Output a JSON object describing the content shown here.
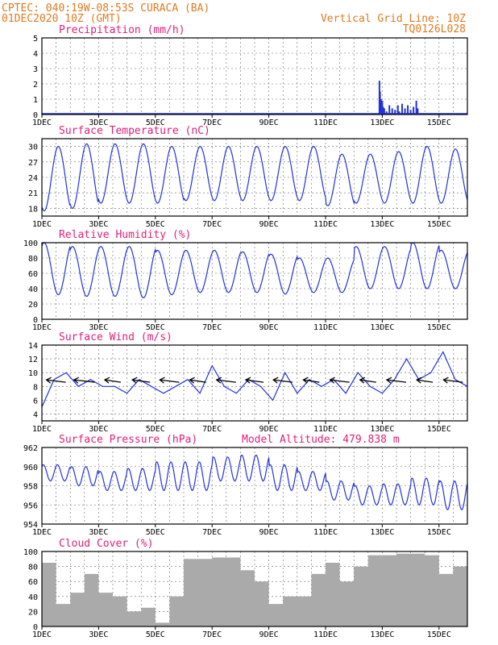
{
  "header": {
    "line1": "CPTEC:  040:19W-08:53S  CURACA (BA)",
    "line2": "01DEC2020 10Z (GMT)",
    "vgrid": "Vertical Grid Line: 10Z",
    "code": "TQ0126L028"
  },
  "colors": {
    "header": "#e07a1f",
    "title": "#e0207a",
    "series": "#2233dd",
    "cloud": "#aaaaaa"
  },
  "xaxis": {
    "ticks": [
      "1DEC",
      "3DEC",
      "5DEC",
      "7DEC",
      "9DEC",
      "11DEC",
      "13DEC",
      "15DEC"
    ],
    "start_day": 1,
    "end_day": 16,
    "grid_step_days": 0.5
  },
  "chart_data": [
    {
      "type": "bar",
      "title": "Precipitation (mm/h)",
      "ylim": [
        0,
        5
      ],
      "yticks": [
        0,
        1,
        2,
        3,
        4,
        5
      ],
      "points": [
        [
          12.9,
          2.2
        ],
        [
          12.92,
          1.5
        ],
        [
          12.95,
          1.0
        ],
        [
          12.97,
          0.7
        ],
        [
          13.0,
          0.9
        ],
        [
          13.03,
          0.5
        ],
        [
          13.07,
          0.4
        ],
        [
          13.15,
          0.2
        ],
        [
          13.25,
          0.6
        ],
        [
          13.35,
          0.4
        ],
        [
          13.45,
          0.3
        ],
        [
          13.55,
          0.6
        ],
        [
          13.6,
          0.2
        ],
        [
          13.7,
          0.7
        ],
        [
          13.8,
          0.4
        ],
        [
          13.9,
          0.6
        ],
        [
          14.0,
          0.3
        ],
        [
          14.1,
          0.5
        ],
        [
          14.2,
          0.9
        ],
        [
          14.25,
          0.4
        ]
      ]
    },
    {
      "type": "line",
      "title": "Surface Temperature (nC)",
      "ylim": [
        16.5,
        31.5
      ],
      "yticks": [
        18,
        21,
        24,
        27,
        30
      ],
      "minima": [
        17.5,
        18,
        19,
        19,
        19,
        19.5,
        19.5,
        19.5,
        19.5,
        19.5,
        18.5,
        19,
        19,
        19,
        19
      ],
      "maxima": [
        30,
        30.5,
        30.5,
        30.5,
        30,
        30,
        30,
        30,
        30,
        30,
        28.5,
        28.5,
        29,
        30,
        29.5
      ]
    },
    {
      "type": "line",
      "title": "Relative Humidity (%)",
      "ylim": [
        0,
        100
      ],
      "yticks": [
        0,
        20,
        40,
        60,
        80,
        100
      ],
      "minima": [
        32,
        30,
        30,
        28,
        32,
        35,
        35,
        35,
        33,
        35,
        35,
        40,
        40,
        40,
        40
      ],
      "maxima": [
        100,
        95,
        95,
        95,
        90,
        90,
        90,
        88,
        85,
        80,
        80,
        95,
        95,
        100,
        90
      ]
    },
    {
      "type": "line",
      "title": "Surface Wind (m/s)",
      "ylim": [
        3,
        14
      ],
      "yticks": [
        4,
        6,
        8,
        10,
        12,
        14
      ],
      "speed": [
        5,
        9,
        10,
        8,
        9,
        8,
        8,
        7,
        9,
        8,
        7,
        8,
        9,
        7,
        11,
        8,
        7,
        9,
        8,
        6,
        10,
        7,
        9,
        8,
        9,
        7,
        10,
        8,
        7,
        9,
        12,
        9,
        10,
        13,
        9,
        8
      ],
      "vectors": [
        {
          "day": 1.5,
          "len": 12
        },
        {
          "day": 2.5,
          "len": 13
        },
        {
          "day": 3.5,
          "len": 10
        },
        {
          "day": 4.5,
          "len": 11
        },
        {
          "day": 5.5,
          "len": 12
        },
        {
          "day": 6.5,
          "len": 10
        },
        {
          "day": 7.5,
          "len": 12
        },
        {
          "day": 8.5,
          "len": 11
        },
        {
          "day": 9.5,
          "len": 12
        },
        {
          "day": 10.5,
          "len": 10
        },
        {
          "day": 11.5,
          "len": 12
        },
        {
          "day": 12.5,
          "len": 10
        },
        {
          "day": 13.5,
          "len": 12
        },
        {
          "day": 14.5,
          "len": 10
        },
        {
          "day": 15.5,
          "len": 12
        }
      ]
    },
    {
      "type": "line",
      "title": "Surface Pressure (hPa)",
      "subtitle": "Model Altitude: 479.838 m",
      "ylim": [
        954,
        962
      ],
      "yticks": [
        954,
        956,
        958,
        960,
        962
      ],
      "base": [
        958.5,
        958,
        957.5,
        957.5,
        957.5,
        957.5,
        958.5,
        958.5,
        957.5,
        957.5,
        956.5,
        956,
        956,
        956,
        955.5
      ],
      "morning_peak": [
        960.2,
        960,
        959.5,
        959.8,
        960.5,
        960.5,
        961,
        961.2,
        960.2,
        959.5,
        958.5,
        958,
        958.2,
        958.8,
        958.5
      ]
    },
    {
      "type": "area",
      "title": "Cloud Cover (%)",
      "ylim": [
        0,
        100
      ],
      "yticks": [
        0,
        20,
        40,
        60,
        80,
        100
      ],
      "segments": [
        [
          1,
          85
        ],
        [
          1.5,
          30
        ],
        [
          2,
          45
        ],
        [
          2.5,
          70
        ],
        [
          3,
          45
        ],
        [
          3.5,
          40
        ],
        [
          4,
          20
        ],
        [
          4.5,
          25
        ],
        [
          5,
          5
        ],
        [
          5.5,
          40
        ],
        [
          6,
          90
        ],
        [
          7,
          92
        ],
        [
          8,
          75
        ],
        [
          8.5,
          60
        ],
        [
          9,
          30
        ],
        [
          9.5,
          40
        ],
        [
          10.5,
          70
        ],
        [
          11,
          85
        ],
        [
          11.5,
          60
        ],
        [
          12,
          80
        ],
        [
          12.5,
          95
        ],
        [
          13.5,
          97
        ],
        [
          14.5,
          95
        ],
        [
          15,
          70
        ],
        [
          15.5,
          80
        ],
        [
          16,
          90
        ]
      ]
    }
  ]
}
